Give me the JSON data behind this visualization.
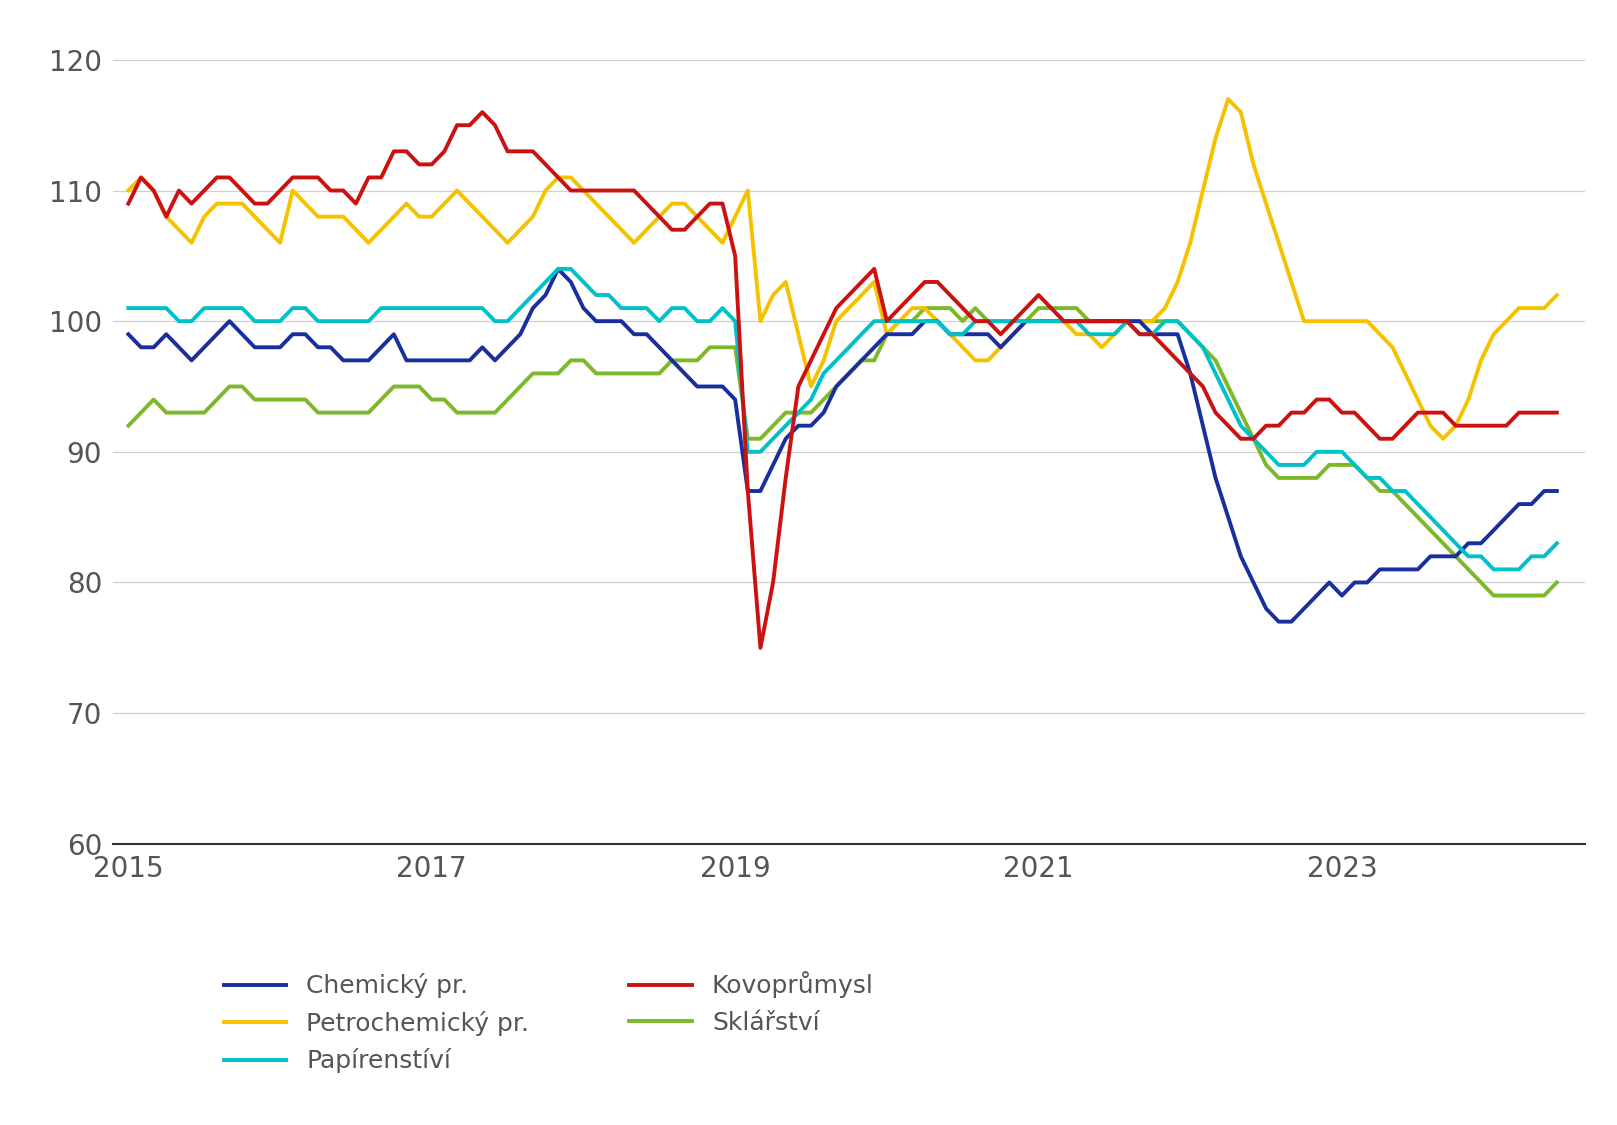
{
  "ylim": [
    60,
    122
  ],
  "yticks": [
    60,
    70,
    80,
    90,
    100,
    110,
    120
  ],
  "xlim": [
    2014.9,
    2024.6
  ],
  "xticks": [
    2015,
    2017,
    2019,
    2021,
    2023
  ],
  "line_width": 2.8,
  "colors": {
    "chemicky": "#1a2f9e",
    "kovoprum": "#cc1111",
    "petrochemicky": "#f5c200",
    "sklarstvi": "#7db82a",
    "papirenstvi": "#00c0c8"
  },
  "legend": {
    "chemicky": "Chemický pr.",
    "kovoprum": "Kovoprůmysl",
    "petrochemicky": "Petrochemický pr.",
    "sklarstvi": "Sklářství",
    "papirenstvi": "Papírenstíví"
  },
  "grid_color": "#d0d0d0",
  "background_color": "#ffffff",
  "font_color": "#555555",
  "font_size_ticks": 20,
  "font_size_legend": 18,
  "chemicky": [
    99,
    98,
    98,
    99,
    98,
    97,
    98,
    99,
    100,
    99,
    98,
    98,
    98,
    99,
    99,
    98,
    98,
    97,
    97,
    97,
    98,
    99,
    97,
    97,
    97,
    97,
    97,
    97,
    98,
    97,
    98,
    99,
    101,
    102,
    104,
    103,
    101,
    100,
    100,
    100,
    99,
    99,
    98,
    97,
    96,
    95,
    95,
    95,
    94,
    87,
    87,
    89,
    91,
    92,
    92,
    93,
    95,
    96,
    97,
    98,
    99,
    99,
    99,
    100,
    100,
    99,
    99,
    99,
    99,
    98,
    99,
    100,
    100,
    100,
    100,
    100,
    100,
    100,
    100,
    100,
    100,
    99,
    99,
    99,
    96,
    92,
    88,
    85,
    82,
    80,
    78,
    77,
    77,
    78,
    79,
    80,
    79,
    80,
    80,
    81,
    81,
    81,
    81,
    82,
    82,
    82,
    83,
    83,
    84,
    85,
    86,
    86,
    87,
    87
  ],
  "kovoprum": [
    109,
    111,
    110,
    108,
    110,
    109,
    110,
    111,
    111,
    110,
    109,
    109,
    110,
    111,
    111,
    111,
    110,
    110,
    109,
    111,
    111,
    113,
    113,
    112,
    112,
    113,
    115,
    115,
    116,
    115,
    113,
    113,
    113,
    112,
    111,
    110,
    110,
    110,
    110,
    110,
    110,
    109,
    108,
    107,
    107,
    108,
    109,
    109,
    105,
    87,
    75,
    80,
    88,
    95,
    97,
    99,
    101,
    102,
    103,
    104,
    100,
    101,
    102,
    103,
    103,
    102,
    101,
    100,
    100,
    99,
    100,
    101,
    102,
    101,
    100,
    100,
    100,
    100,
    100,
    100,
    99,
    99,
    98,
    97,
    96,
    95,
    93,
    92,
    91,
    91,
    92,
    92,
    93,
    93,
    94,
    94,
    93,
    93,
    92,
    91,
    91,
    92,
    93,
    93,
    93,
    92,
    92,
    92,
    92,
    92,
    93,
    93,
    93,
    93
  ],
  "petrochemicky": [
    110,
    111,
    110,
    108,
    107,
    106,
    108,
    109,
    109,
    109,
    108,
    107,
    106,
    110,
    109,
    108,
    108,
    108,
    107,
    106,
    107,
    108,
    109,
    108,
    108,
    109,
    110,
    109,
    108,
    107,
    106,
    107,
    108,
    110,
    111,
    111,
    110,
    109,
    108,
    107,
    106,
    107,
    108,
    109,
    109,
    108,
    107,
    106,
    108,
    110,
    100,
    102,
    103,
    99,
    95,
    97,
    100,
    101,
    102,
    103,
    99,
    100,
    101,
    101,
    100,
    99,
    98,
    97,
    97,
    98,
    99,
    100,
    100,
    100,
    100,
    99,
    99,
    98,
    99,
    100,
    100,
    100,
    101,
    103,
    106,
    110,
    114,
    117,
    116,
    112,
    109,
    106,
    103,
    100,
    100,
    100,
    100,
    100,
    100,
    99,
    98,
    96,
    94,
    92,
    91,
    92,
    94,
    97,
    99,
    100,
    101,
    101,
    101,
    102
  ],
  "sklarstvi": [
    92,
    93,
    94,
    93,
    93,
    93,
    93,
    94,
    95,
    95,
    94,
    94,
    94,
    94,
    94,
    93,
    93,
    93,
    93,
    93,
    94,
    95,
    95,
    95,
    94,
    94,
    93,
    93,
    93,
    93,
    94,
    95,
    96,
    96,
    96,
    97,
    97,
    96,
    96,
    96,
    96,
    96,
    96,
    97,
    97,
    97,
    98,
    98,
    98,
    91,
    91,
    92,
    93,
    93,
    93,
    94,
    95,
    96,
    97,
    97,
    99,
    100,
    100,
    101,
    101,
    101,
    100,
    101,
    100,
    100,
    100,
    100,
    101,
    101,
    101,
    101,
    100,
    100,
    100,
    100,
    100,
    100,
    100,
    100,
    99,
    98,
    97,
    95,
    93,
    91,
    89,
    88,
    88,
    88,
    88,
    89,
    89,
    89,
    88,
    87,
    87,
    86,
    85,
    84,
    83,
    82,
    81,
    80,
    79,
    79,
    79,
    79,
    79,
    80
  ],
  "papirenstvi": [
    101,
    101,
    101,
    101,
    100,
    100,
    101,
    101,
    101,
    101,
    100,
    100,
    100,
    101,
    101,
    100,
    100,
    100,
    100,
    100,
    101,
    101,
    101,
    101,
    101,
    101,
    101,
    101,
    101,
    100,
    100,
    101,
    102,
    103,
    104,
    104,
    103,
    102,
    102,
    101,
    101,
    101,
    100,
    101,
    101,
    100,
    100,
    101,
    100,
    90,
    90,
    91,
    92,
    93,
    94,
    96,
    97,
    98,
    99,
    100,
    100,
    100,
    100,
    100,
    100,
    99,
    99,
    100,
    100,
    100,
    100,
    100,
    100,
    100,
    100,
    100,
    99,
    99,
    99,
    100,
    99,
    99,
    100,
    100,
    99,
    98,
    96,
    94,
    92,
    91,
    90,
    89,
    89,
    89,
    90,
    90,
    90,
    89,
    88,
    88,
    87,
    87,
    86,
    85,
    84,
    83,
    82,
    82,
    81,
    81,
    81,
    82,
    82,
    83
  ]
}
